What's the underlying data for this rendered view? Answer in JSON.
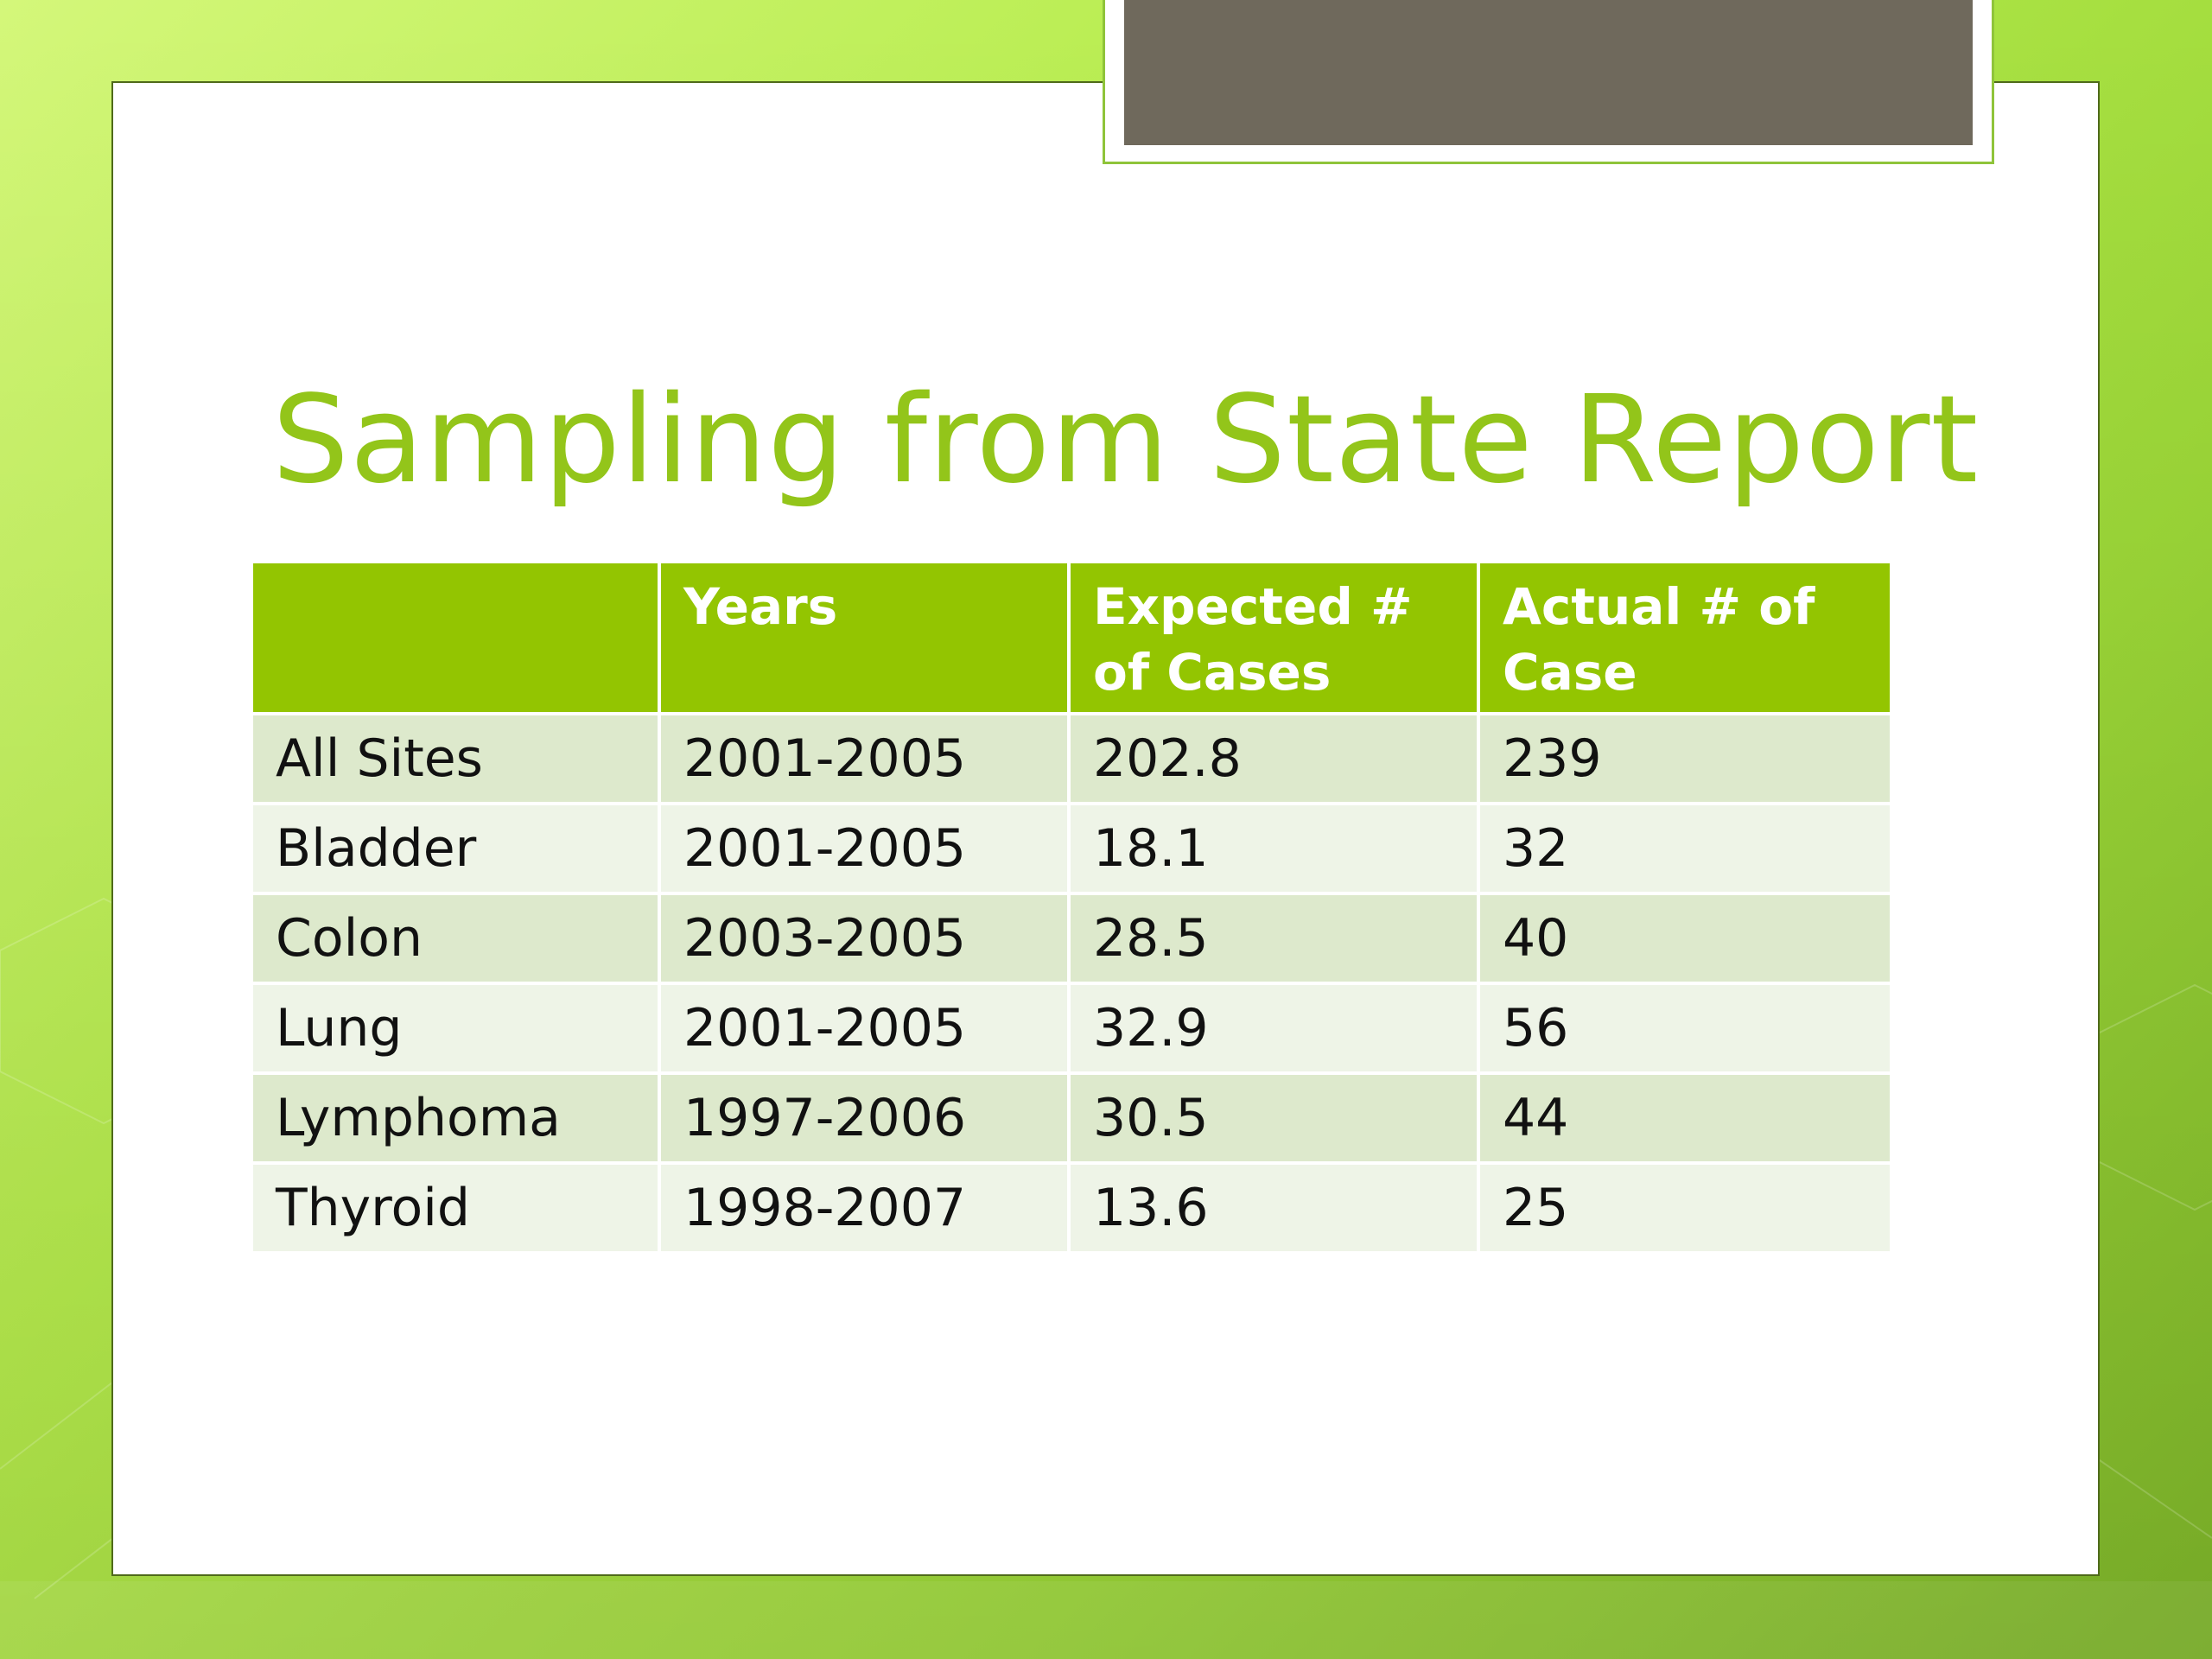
{
  "slide": {
    "title": "Sampling from State Report"
  },
  "table": {
    "headers": [
      "",
      "Years",
      "Expected # of Cases",
      "Actual # of Case"
    ],
    "rows": [
      {
        "site": "All Sites",
        "years": "2001-2005",
        "expected": "202.8",
        "actual": "239"
      },
      {
        "site": "Bladder",
        "years": "2001-2005",
        "expected": "18.1",
        "actual": "32"
      },
      {
        "site": "Colon",
        "years": "2003-2005",
        "expected": "28.5",
        "actual": "40"
      },
      {
        "site": "Lung",
        "years": "2001-2005",
        "expected": "32.9",
        "actual": "56"
      },
      {
        "site": "Lymphoma",
        "years": "1997-2006",
        "expected": "30.5",
        "actual": "44"
      },
      {
        "site": "Thyroid",
        "years": "1998-2007",
        "expected": "13.6",
        "actual": "25"
      }
    ]
  },
  "colors": {
    "accent": "#93c501",
    "title": "#93c51a",
    "row_dark": "#dde9cc",
    "row_light": "#eef4e7",
    "tab_fill": "#6f695c"
  }
}
